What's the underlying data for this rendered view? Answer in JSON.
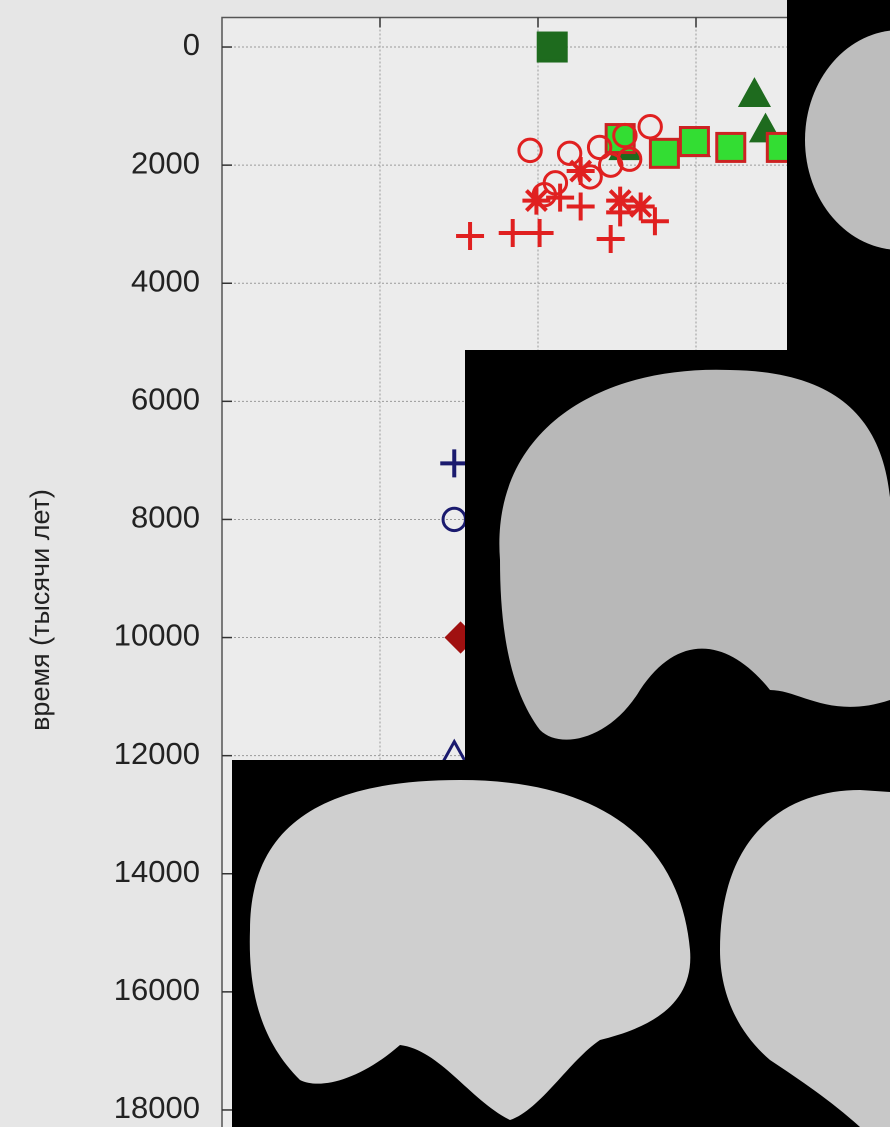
{
  "chart_data": {
    "type": "scatter",
    "y_label": "время (тысячи лет)",
    "ylim": [
      -500,
      18500
    ],
    "y_inverted": true,
    "yticks": [
      0,
      2000,
      4000,
      6000,
      8000,
      10000,
      12000,
      14000,
      16000,
      18000
    ],
    "xlim": [
      0,
      4
    ],
    "xticks": [
      1,
      2,
      3
    ],
    "grid": true,
    "series": [
      {
        "marker": "square",
        "color": "#1e6b1e",
        "edge": "#1e6b1e",
        "x": [
          2.09
        ],
        "values": [
          0
        ]
      },
      {
        "marker": "triangle",
        "color": "#1e6b1e",
        "edge": "#1e6b1e",
        "x": [
          3.37,
          3.44,
          2.99,
          2.55
        ],
        "values": [
          800,
          1400,
          1650,
          1700
        ]
      },
      {
        "marker": "square",
        "color": "#33dd33",
        "edge": "#cc2222",
        "x": [
          2.52,
          2.8,
          2.99,
          3.22,
          3.54
        ],
        "values": [
          1550,
          1800,
          1600,
          1700,
          1700
        ]
      },
      {
        "marker": "circle",
        "color": "none",
        "edge": "#e02020",
        "x": [
          1.95,
          2.2,
          2.11,
          2.39,
          2.46,
          2.55,
          2.71,
          2.33,
          2.04,
          2.58
        ],
        "values": [
          1750,
          1800,
          2300,
          1700,
          2000,
          1500,
          1350,
          2200,
          2500,
          1900
        ]
      },
      {
        "marker": "asterisk",
        "color": "#e02020",
        "edge": "#e02020",
        "x": [
          1.99,
          2.52,
          2.27,
          2.65
        ],
        "values": [
          2600,
          2600,
          2100,
          2700
        ]
      },
      {
        "marker": "plus",
        "color": "#e02020",
        "edge": "#e02020",
        "x": [
          1.57,
          1.84,
          2.01,
          2.46,
          2.74,
          2.27,
          2.52,
          2.14
        ],
        "values": [
          3200,
          3150,
          3150,
          3250,
          2950,
          2700,
          2800,
          2550
        ]
      },
      {
        "marker": "plus",
        "color": "#1a1a6e",
        "edge": "#1a1a6e",
        "x": [
          1.47
        ],
        "values": [
          7050
        ]
      },
      {
        "marker": "circle",
        "color": "none",
        "edge": "#1a1a6e",
        "x": [
          1.47
        ],
        "values": [
          8000
        ]
      },
      {
        "marker": "diamond",
        "color": "#a01010",
        "edge": "#a01010",
        "x": [
          1.51
        ],
        "values": [
          10000
        ]
      },
      {
        "marker": "triangle",
        "color": "none",
        "edge": "#1a1a6e",
        "x": [
          1.47
        ],
        "values": [
          12000
        ]
      }
    ]
  }
}
